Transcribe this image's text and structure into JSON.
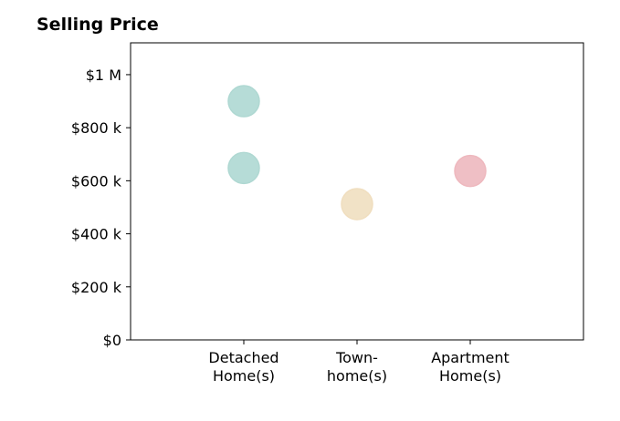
{
  "chart_data": {
    "type": "scatter",
    "title": "Selling Price",
    "xlabel": "",
    "ylabel": "",
    "categories": [
      [
        "Detached",
        "Home(s)"
      ],
      [
        "Town-",
        "home(s)"
      ],
      [
        "Apartment",
        "Home(s)"
      ]
    ],
    "ylim": [
      0,
      1120000
    ],
    "xlim": [
      -1,
      3
    ],
    "yticks": [
      {
        "value": 0,
        "label": "$0"
      },
      {
        "value": 200000,
        "label": "$200 k"
      },
      {
        "value": 400000,
        "label": "$400 k"
      },
      {
        "value": 600000,
        "label": "$600 k"
      },
      {
        "value": 800000,
        "label": "$800 k"
      },
      {
        "value": 1000000,
        "label": "$1 M"
      }
    ],
    "points": [
      {
        "category": 0,
        "value": 900000,
        "color": "#b4dfd9"
      },
      {
        "category": 0,
        "value": 648000,
        "color": "#b4dfd9"
      },
      {
        "category": 1,
        "value": 512000,
        "color": "#f7e5c5"
      },
      {
        "category": 2,
        "value": 637000,
        "color": "#f5bec4"
      }
    ],
    "grid": false,
    "legend": "none"
  }
}
